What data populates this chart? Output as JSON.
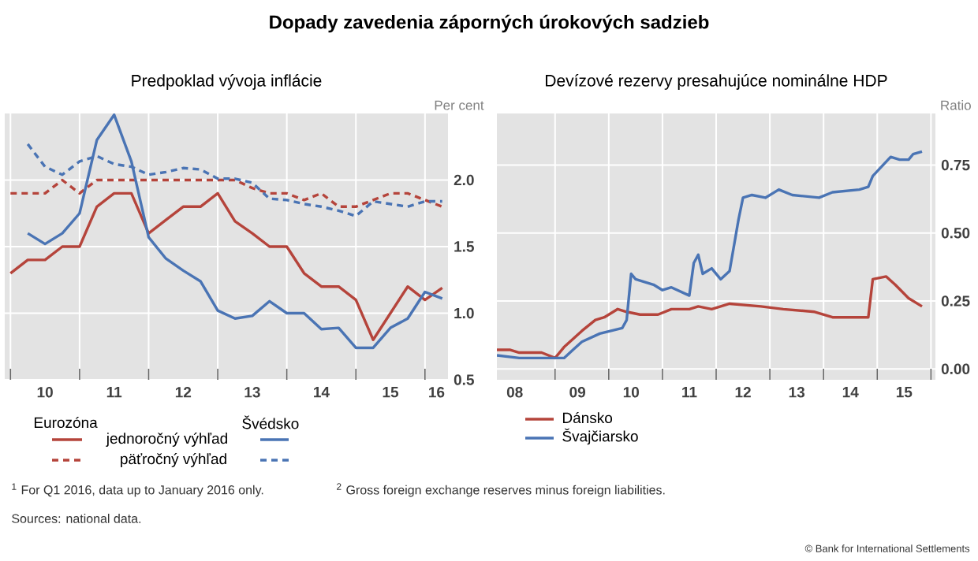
{
  "chart_data": [
    {
      "type": "line",
      "title": "Dopady zavedenia záporných úrokových sadzieb",
      "subtitle": "Predpoklad vývoja inflácie",
      "ylabel": "Per cent",
      "xlim": [
        "2009-12",
        "2016-05"
      ],
      "xticks": [
        {
          "value": "2010-01",
          "label": null
        },
        {
          "value": "2011-01",
          "label": null
        },
        {
          "value": "2012-01",
          "label": null
        },
        {
          "value": "2013-01",
          "label": null
        },
        {
          "value": "2014-01",
          "label": null
        },
        {
          "value": "2015-01",
          "label": null
        },
        {
          "value": "2016-01",
          "label": null
        },
        {
          "value": "2010-07",
          "label": "10"
        },
        {
          "value": "2011-07",
          "label": "11"
        },
        {
          "value": "2012-07",
          "label": "12"
        },
        {
          "value": "2013-07",
          "label": "13"
        },
        {
          "value": "2014-07",
          "label": "14"
        },
        {
          "value": "2015-07",
          "label": "15"
        },
        {
          "value": "2016-03",
          "label": "16"
        }
      ],
      "ylim": [
        0.5,
        2.5
      ],
      "yticks": [
        0.5,
        {
          "value": 1.0,
          "label": "1.0"
        },
        1.5,
        {
          "value": 2.0,
          "label": "2.0"
        }
      ],
      "grid": true,
      "legend": "bottom",
      "annotations": [
        "Eurozóna",
        "Švédsko",
        "jednoročný výhľad",
        "päťročný výhľad"
      ],
      "series": [
        {
          "color": "#b5443b",
          "line_style": "solid",
          "x": [
            "2010-01",
            "2010-04",
            "2010-07",
            "2010-10",
            "2011-01",
            "2011-04",
            "2011-07",
            "2011-10",
            "2012-01",
            "2012-04",
            "2012-07",
            "2012-10",
            "2013-01",
            "2013-04",
            "2013-07",
            "2013-10",
            "2014-01",
            "2014-04",
            "2014-07",
            "2014-10",
            "2015-01",
            "2015-04",
            "2015-07",
            "2015-10",
            "2016-01",
            "2016-04"
          ],
          "values": [
            1.3,
            1.4,
            1.4,
            1.5,
            1.5,
            1.8,
            1.9,
            1.9,
            1.6,
            1.7,
            1.8,
            1.8,
            1.9,
            1.69,
            1.6,
            1.5,
            1.5,
            1.3,
            1.2,
            1.2,
            1.1,
            0.8,
            1.0,
            1.2,
            1.1,
            1.19
          ]
        },
        {
          "color": "#b5443b",
          "line_style": "dashed",
          "x": [
            "2010-01",
            "2010-04",
            "2010-07",
            "2010-10",
            "2011-01",
            "2011-04",
            "2011-07",
            "2011-10",
            "2012-01",
            "2012-04",
            "2012-07",
            "2012-10",
            "2013-01",
            "2013-04",
            "2013-07",
            "2013-10",
            "2014-01",
            "2014-04",
            "2014-07",
            "2014-10",
            "2015-01",
            "2015-04",
            "2015-07",
            "2015-10",
            "2016-01",
            "2016-04"
          ],
          "values": [
            1.9,
            1.9,
            1.9,
            2.0,
            1.9,
            2.0,
            2.0,
            2.0,
            2.0,
            2.0,
            2.0,
            2.0,
            2.0,
            2.0,
            1.94,
            1.9,
            1.9,
            1.85,
            1.9,
            1.8,
            1.8,
            1.85,
            1.9,
            1.9,
            1.85,
            1.8
          ]
        },
        {
          "color": "#4a74b4",
          "line_style": "solid",
          "x": [
            "2010-04",
            "2010-07",
            "2010-10",
            "2011-01",
            "2011-04",
            "2011-07",
            "2011-10",
            "2012-01",
            "2012-04",
            "2012-07",
            "2012-10",
            "2013-01",
            "2013-04",
            "2013-07",
            "2013-10",
            "2014-01",
            "2014-04",
            "2014-07",
            "2014-10",
            "2015-01",
            "2015-04",
            "2015-07",
            "2015-10",
            "2016-01",
            "2016-04"
          ],
          "values": [
            1.6,
            1.52,
            1.6,
            1.75,
            2.3,
            2.49,
            2.14,
            1.57,
            1.41,
            1.32,
            1.24,
            1.02,
            0.96,
            0.98,
            1.09,
            1.0,
            1.0,
            0.88,
            0.89,
            0.74,
            0.74,
            0.89,
            0.96,
            1.16,
            1.11
          ]
        },
        {
          "color": "#4a74b4",
          "line_style": "dashed",
          "x": [
            "2010-04",
            "2010-07",
            "2010-10",
            "2011-01",
            "2011-04",
            "2011-07",
            "2011-10",
            "2012-01",
            "2012-04",
            "2012-07",
            "2012-10",
            "2013-01",
            "2013-04",
            "2013-07",
            "2013-10",
            "2014-01",
            "2014-04",
            "2014-07",
            "2014-10",
            "2015-01",
            "2015-04",
            "2015-07",
            "2015-10",
            "2016-01",
            "2016-04"
          ],
          "values": [
            2.27,
            2.1,
            2.04,
            2.14,
            2.18,
            2.12,
            2.1,
            2.04,
            2.06,
            2.09,
            2.08,
            2.01,
            2.01,
            1.98,
            1.86,
            1.85,
            1.82,
            1.8,
            1.77,
            1.73,
            1.84,
            1.82,
            1.8,
            1.84,
            1.84
          ]
        }
      ]
    },
    {
      "type": "line",
      "title": "Devízové rezervy presahujúce nominálne HDP",
      "ylabel": "Ratio",
      "xlim": [
        "2007-12",
        "2016-02"
      ],
      "xticks": [
        {
          "value": "2009-01",
          "label": null
        },
        {
          "value": "2010-01",
          "label": null
        },
        {
          "value": "2011-01",
          "label": null
        },
        {
          "value": "2012-01",
          "label": null
        },
        {
          "value": "2013-01",
          "label": null
        },
        {
          "value": "2014-01",
          "label": null
        },
        {
          "value": "2015-01",
          "label": null
        },
        {
          "value": "2016-01",
          "label": null
        },
        {
          "value": "2008-04",
          "label": "08"
        },
        {
          "value": "2009-06",
          "label": "09"
        },
        {
          "value": "2010-06",
          "label": "10"
        },
        {
          "value": "2011-07",
          "label": "11"
        },
        {
          "value": "2012-07",
          "label": "12"
        },
        {
          "value": "2013-07",
          "label": "13"
        },
        {
          "value": "2014-07",
          "label": "14"
        },
        {
          "value": "2015-07",
          "label": "15"
        }
      ],
      "ylim": [
        -0.04,
        0.94
      ],
      "yticks": [
        {
          "value": 0,
          "label": "0.00"
        },
        0.25,
        {
          "value": 0.5,
          "label": "0.50"
        },
        0.75
      ],
      "grid": true,
      "legend": "bottom",
      "annotations": [
        "$^{1}$ For Q1 2016, data up to January 2016 only.",
        "$^{2}$ Gross foreign exchange reserves minus foreign liabilities.",
        "Sources: national data.",
        "© Bank for International Settlements"
      ],
      "series": [
        {
          "name": "Dánsko",
          "color": "#b5443b",
          "line_style": "solid",
          "x": [
            "2007-12",
            "2008-03",
            "2008-05",
            "2008-10",
            "2009-01",
            "2009-03",
            "2009-05",
            "2009-07",
            "2009-10",
            "2009-12",
            "2010-03",
            "2010-05",
            "2010-08",
            "2010-12",
            "2011-03",
            "2011-07",
            "2011-09",
            "2011-12",
            "2012-04",
            "2012-11",
            "2013-04",
            "2013-11",
            "2014-03",
            "2014-11",
            "2014-12",
            "2015-03",
            "2015-05",
            "2015-08",
            "2015-11"
          ],
          "values": [
            0.07,
            0.07,
            0.06,
            0.06,
            0.04,
            0.08,
            0.11,
            0.14,
            0.18,
            0.19,
            0.22,
            0.21,
            0.2,
            0.2,
            0.22,
            0.22,
            0.23,
            0.22,
            0.24,
            0.23,
            0.22,
            0.21,
            0.19,
            0.19,
            0.33,
            0.34,
            0.31,
            0.26,
            0.23
          ]
        },
        {
          "name": "Švajčiarsko",
          "color": "#4a74b4",
          "line_style": "solid",
          "x": [
            "2007-12",
            "2008-05",
            "2008-10",
            "2009-03",
            "2009-05",
            "2009-07",
            "2009-11",
            "2010-04",
            "2010-05",
            "2010-06",
            "2010-07",
            "2010-11",
            "2011-01",
            "2011-03",
            "2011-07",
            "2011-08",
            "2011-09",
            "2011-10",
            "2011-12",
            "2012-02",
            "2012-04",
            "2012-06",
            "2012-07",
            "2012-09",
            "2012-12",
            "2013-03",
            "2013-06",
            "2013-12",
            "2014-03",
            "2014-09",
            "2014-11",
            "2014-12",
            "2015-04",
            "2015-06",
            "2015-08",
            "2015-09",
            "2015-11"
          ],
          "values": [
            0.05,
            0.04,
            0.04,
            0.04,
            0.07,
            0.1,
            0.13,
            0.15,
            0.18,
            0.35,
            0.33,
            0.31,
            0.29,
            0.3,
            0.27,
            0.39,
            0.42,
            0.35,
            0.37,
            0.33,
            0.36,
            0.55,
            0.63,
            0.64,
            0.63,
            0.66,
            0.64,
            0.63,
            0.65,
            0.66,
            0.67,
            0.71,
            0.78,
            0.77,
            0.77,
            0.79,
            0.8
          ]
        }
      ]
    }
  ]
}
